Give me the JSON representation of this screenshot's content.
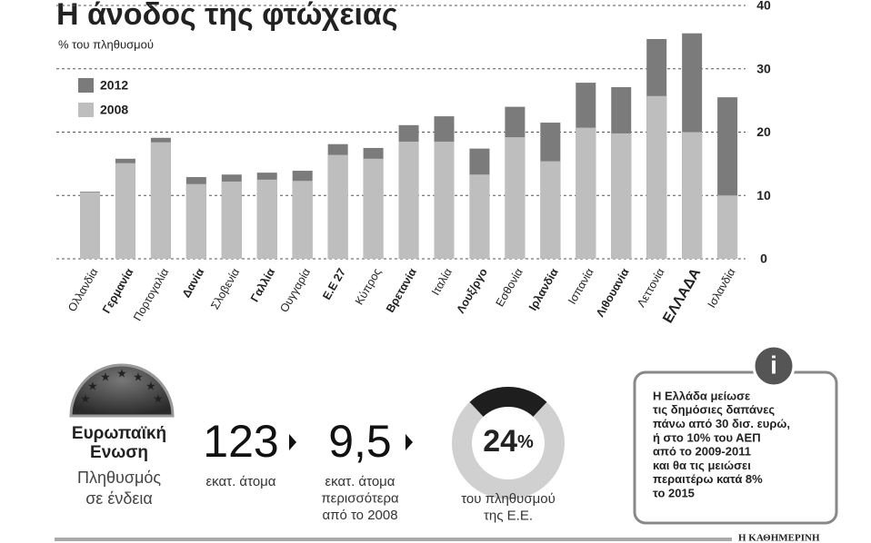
{
  "chart_data": {
    "type": "bar",
    "title": "Η άνοδος της φτώχειας",
    "subtitle": "% του πληθυσμού",
    "categories": [
      "Ολλανδία",
      "Γερμανία",
      "Πορτογαλία",
      "Δανία",
      "Σλοβενία",
      "Γαλλία",
      "Ουγγαρία",
      "Ε.Ε 27",
      "Κύπρος",
      "Βρετανία",
      "Ιταλία",
      "Λουξ/ργο",
      "Εσθονία",
      "Ιρλανδία",
      "Ισπανία",
      "Λιθουανία",
      "Λεττονία",
      "ΕΛΛΑΔΑ",
      "Ισλανδία"
    ],
    "series": [
      {
        "name": "2012",
        "color": "#7b7b7b",
        "values": [
          10.6,
          15.8,
          19.1,
          12.9,
          13.3,
          13.6,
          13.9,
          18.1,
          17.5,
          21.1,
          22.5,
          17.4,
          24.0,
          21.5,
          27.8,
          27.1,
          34.7,
          35.6,
          25.5
        ]
      },
      {
        "name": "2008",
        "color": "#bebebe",
        "values": [
          10.5,
          15.1,
          18.4,
          11.8,
          12.2,
          12.5,
          12.3,
          16.4,
          15.8,
          18.5,
          18.5,
          13.3,
          19.2,
          15.4,
          20.7,
          19.8,
          25.7,
          20.0,
          10.0
        ]
      }
    ],
    "ylim": [
      0,
      40
    ],
    "yticks": [
      0,
      10,
      20,
      30,
      40
    ],
    "grid": true
  },
  "panel": {
    "eu": {
      "name": [
        "Ευρωπαϊκή",
        "Ενωση"
      ],
      "caption": [
        "Πληθυσμός",
        "σε ένδεια"
      ]
    },
    "stats": [
      {
        "value": 123,
        "caption": [
          "εκατ. άτομα"
        ]
      },
      {
        "value": "9,5",
        "caption": [
          "εκατ. άτομα",
          "περισσότερα",
          "από το 2008"
        ]
      }
    ],
    "donut": {
      "value": 24,
      "unit": "%",
      "caption": [
        "του πληθυσμού",
        "της Ε.Ε."
      ]
    },
    "info": {
      "icon": "i",
      "lines": [
        "Η Ελλάδα μείωσε",
        "τις δημόσιες δαπάνες",
        "πάνω από 30 δισ. ευρώ,",
        "ή στο 10% του ΑΕΠ",
        "από το 2009-2011",
        "και θα τις μειώσει",
        "περαιτέρω κατά 8%",
        "το 2015"
      ]
    },
    "source": "Η ΚΑΘΗΜΕΡΙΝΗ"
  }
}
